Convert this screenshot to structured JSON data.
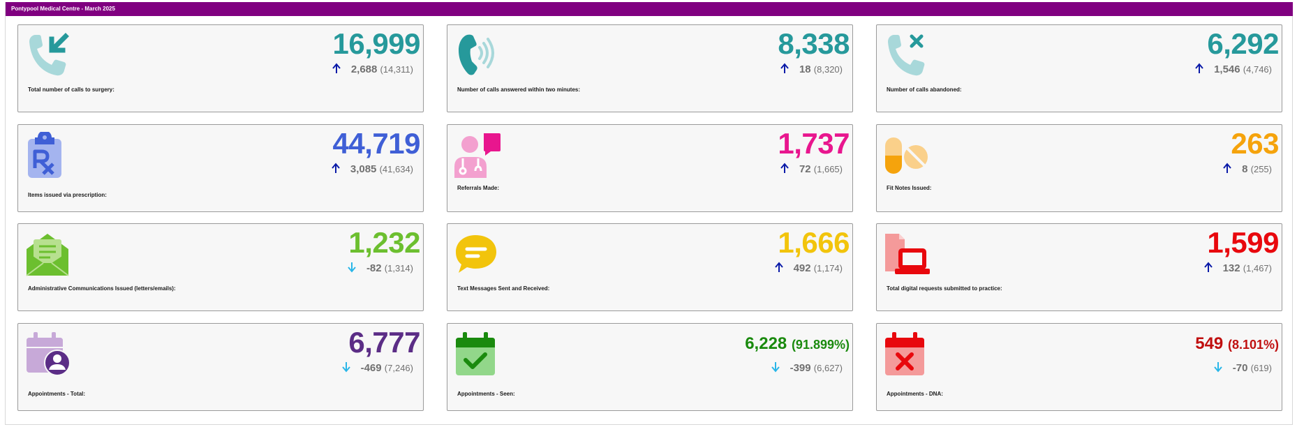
{
  "header": {
    "title": "Pontypool Medical Centre - March 2025"
  },
  "cards": [
    {
      "label": "Total number of calls to surgery:",
      "value": "16,999",
      "change": "2,688",
      "previous": "(14,311)",
      "direction": "up",
      "color": "#26999b",
      "icon": "incoming-call-icon"
    },
    {
      "label": "Number of calls answered within two minutes:",
      "value": "8,338",
      "change": "18",
      "previous": "(8,320)",
      "direction": "up",
      "color": "#26999b",
      "icon": "ringing-phone-icon"
    },
    {
      "label": "Number of calls abandoned:",
      "value": "6,292",
      "change": "1,546",
      "previous": "(4,746)",
      "direction": "up",
      "color": "#26999b",
      "icon": "missed-call-icon"
    },
    {
      "label": "Items issued via prescription:",
      "value": "44,719",
      "change": "3,085",
      "previous": "(41,634)",
      "direction": "up",
      "color": "#3f5fd6",
      "icon": "prescription-clipboard-icon"
    },
    {
      "label": "Referrals Made:",
      "value": "1,737",
      "change": "72",
      "previous": "(1,665)",
      "direction": "up",
      "color": "#e8168e",
      "icon": "doctor-chat-icon"
    },
    {
      "label": "Fit Notes Issued:",
      "value": "263",
      "change": "8",
      "previous": "(255)",
      "direction": "up",
      "color": "#f5a30c",
      "icon": "pills-icon"
    },
    {
      "label": "Administrative Communications Issued (letters/emails):",
      "value": "1,232",
      "change": "-82",
      "previous": "(1,314)",
      "direction": "down",
      "color": "#6cbf2f",
      "icon": "open-envelope-icon"
    },
    {
      "label": "Text Messages Sent and Received:",
      "value": "1,666",
      "change": "492",
      "previous": "(1,174)",
      "direction": "up",
      "color": "#f2c40c",
      "icon": "speech-bubble-icon"
    },
    {
      "label": "Total digital requests submitted to practice:",
      "value": "1,599",
      "change": "132",
      "previous": "(1,467)",
      "direction": "up",
      "color": "#e8080d",
      "icon": "laptop-document-icon"
    },
    {
      "label": "Appointments - Total:",
      "value": "6,777",
      "change": "-469",
      "previous": "(7,246)",
      "direction": "down",
      "color": "#5b2d86",
      "icon": "calendar-user-icon"
    },
    {
      "label": "Appointments - Seen:",
      "value": "6,228",
      "percent": "(91.899%)",
      "change": "-399",
      "previous": "(6,627)",
      "direction": "down",
      "color": "#1a8a0e",
      "icon": "calendar-check-icon"
    },
    {
      "label": "Appointments - DNA:",
      "value": "549",
      "percent": "(8.101%)",
      "change": "-70",
      "previous": "(619)",
      "direction": "down",
      "color": "#c00f0f",
      "icon": "calendar-cross-icon"
    }
  ],
  "colors": {
    "header_bg": "#800080",
    "arrow_up": "#0a1aa8",
    "arrow_down": "#29b6e8"
  }
}
